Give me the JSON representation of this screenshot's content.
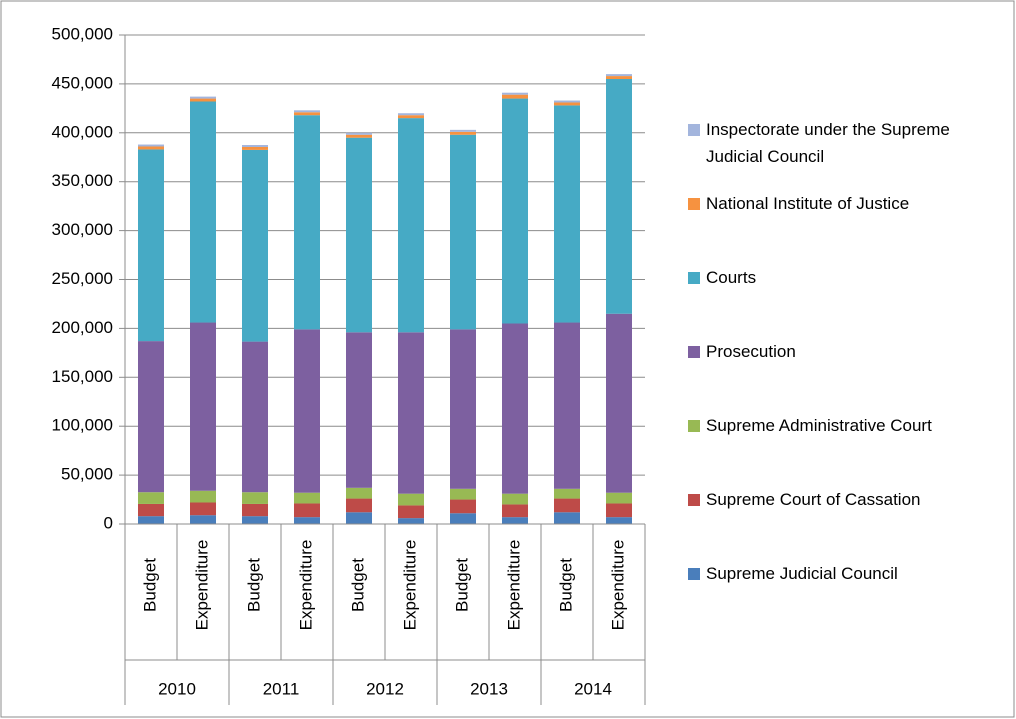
{
  "chart_data": {
    "type": "stacked_bar",
    "categories": [
      "Budget",
      "Expenditure",
      "Budget",
      "Expenditure",
      "Budget",
      "Expenditure",
      "Budget",
      "Expenditure",
      "Budget",
      "Expenditure"
    ],
    "groups": [
      "2010",
      "2011",
      "2012",
      "2013",
      "2014"
    ],
    "series": [
      {
        "name": "Supreme Judicial Council",
        "color": "#4a7ebb",
        "values": [
          8000,
          9000,
          8000,
          7000,
          12000,
          6000,
          11000,
          7000,
          12000,
          7000
        ]
      },
      {
        "name": "Supreme Court of Cassation",
        "color": "#be4b48",
        "values": [
          12500,
          13000,
          12500,
          14000,
          14000,
          13000,
          14000,
          13000,
          14000,
          14000
        ]
      },
      {
        "name": "Supreme Administrative Court",
        "color": "#98b954",
        "values": [
          12000,
          12000,
          12000,
          11000,
          11000,
          12000,
          11000,
          11000,
          10000,
          11000
        ]
      },
      {
        "name": "Prosecution",
        "color": "#7d60a0",
        "values": [
          154500,
          172000,
          154000,
          167000,
          159000,
          165000,
          163000,
          174000,
          170000,
          183000
        ]
      },
      {
        "name": "Courts",
        "color": "#46aac5",
        "values": [
          196000,
          226000,
          196000,
          219000,
          199000,
          219000,
          199000,
          230000,
          222000,
          240000
        ]
      },
      {
        "name": "National Institute of Justice",
        "color": "#f69240",
        "values": [
          3000,
          3000,
          3000,
          3000,
          3000,
          3000,
          3000,
          4000,
          3000,
          3000
        ]
      },
      {
        "name": "Inspectorate under the Supreme Judicial Council",
        "color": "#a3b5dd",
        "values": [
          2000,
          2000,
          2000,
          2000,
          2000,
          2000,
          2000,
          2000,
          2000,
          2000
        ]
      }
    ],
    "ylim": [
      0,
      500000
    ],
    "yticks": [
      0,
      {
        "value": 50000,
        "label": "50,000"
      },
      {
        "value": 100000,
        "label": "100,000"
      },
      {
        "value": 150000,
        "label": "150,000"
      },
      {
        "value": 200000,
        "label": "200,000"
      },
      {
        "value": 250000,
        "label": "250,000"
      },
      {
        "value": 300000,
        "label": "300,000"
      },
      {
        "value": 350000,
        "label": "350,000"
      },
      {
        "value": 400000,
        "label": "400,000"
      },
      {
        "value": 450000,
        "label": "450,000"
      },
      {
        "value": 500000,
        "label": "500,000"
      }
    ],
    "grid": true,
    "legend": "right"
  }
}
